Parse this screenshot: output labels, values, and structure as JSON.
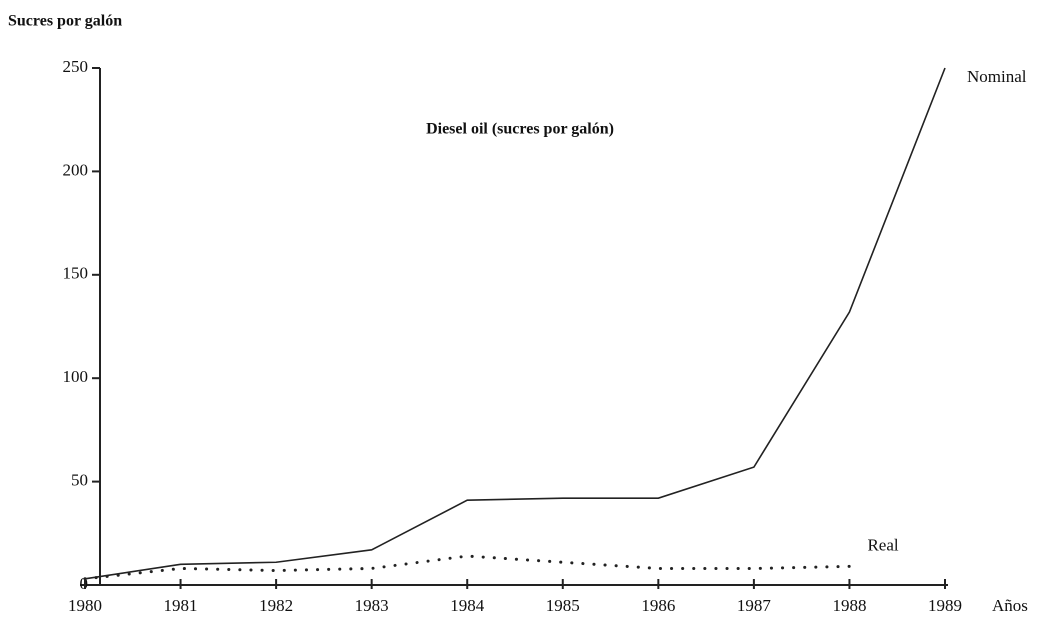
{
  "chart_data": {
    "type": "line",
    "title": "Diesel oil (sucres por galón)",
    "y_label": "Sucres por galón",
    "x_label": "Años",
    "x": [
      1980,
      1981,
      1982,
      1983,
      1984,
      1985,
      1986,
      1987,
      1988,
      1989
    ],
    "xlim": [
      1980,
      1989
    ],
    "xticks": [
      1980,
      1981,
      1982,
      1983,
      1984,
      1985,
      1986,
      1987,
      1988,
      1989
    ],
    "ylim": [
      0,
      250
    ],
    "yticks": [
      0,
      50,
      100,
      150,
      200,
      250
    ],
    "grid": false,
    "series": [
      {
        "name": "Nominal",
        "color": "#222222",
        "style": "solid",
        "values": [
          3,
          10,
          11,
          17,
          41,
          42,
          42,
          57,
          132,
          250
        ]
      },
      {
        "name": "Real",
        "color": "#222222",
        "style": "dotted",
        "values": [
          3,
          8,
          7,
          8,
          14,
          11,
          8,
          8,
          9,
          null
        ]
      }
    ]
  }
}
